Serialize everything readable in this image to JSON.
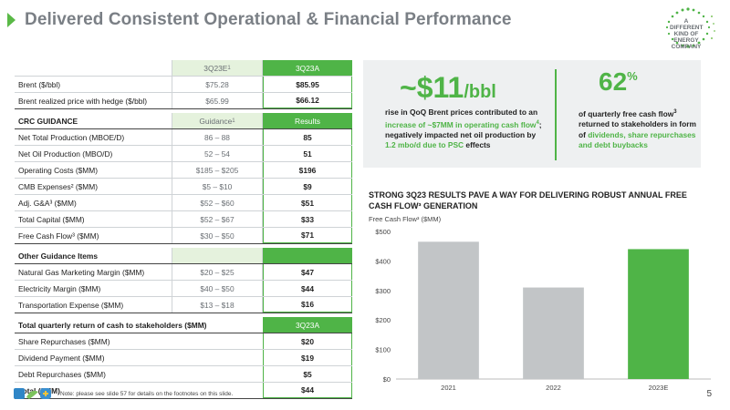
{
  "header": {
    "title": "Delivered Consistent Operational & Financial Performance",
    "logo_text": [
      "A DIFFERENT",
      "KIND OF ENERGY",
      "COMPANY"
    ]
  },
  "table": {
    "price_header": {
      "col1": "3Q23E",
      "col1_sup": "1",
      "col2": "3Q23A"
    },
    "price_rows": [
      {
        "label": "Brent ($/bbl)",
        "col1": "$75.28",
        "col2": "$85.95"
      },
      {
        "label": "Brent realized price with hedge ($/bbl)",
        "col1": "$65.99",
        "col2": "$66.12"
      }
    ],
    "guidance_header": {
      "label": "CRC GUIDANCE",
      "col1": "Guidance",
      "col1_sup": "1",
      "col2": "Results"
    },
    "guidance_rows": [
      {
        "label": "Net Total Production (MBOE/D)",
        "col1": "86 – 88",
        "col2": "85"
      },
      {
        "label": "Net Oil Production (MBO/D)",
        "col1": "52 – 54",
        "col2": "51"
      },
      {
        "label": "Operating Costs ($MM)",
        "col1": "$185 – $205",
        "col2": "$196"
      },
      {
        "label": "CMB Expenses² ($MM)",
        "col1": "$5 – $10",
        "col2": "$9"
      },
      {
        "label": "Adj. G&A³ ($MM)",
        "col1": "$52 – $60",
        "col2": "$51"
      },
      {
        "label": "Total Capital ($MM)",
        "col1": "$52 – $67",
        "col2": "$33"
      },
      {
        "label": "Free Cash Flow³ ($MM)",
        "col1": "$30 – $50",
        "col2": "$71"
      }
    ],
    "other_header": {
      "label": "Other Guidance Items"
    },
    "other_rows": [
      {
        "label": "Natural Gas Marketing Margin ($MM)",
        "col1": "$20 – $25",
        "col2": "$47"
      },
      {
        "label": "Electricity Margin ($MM)",
        "col1": "$40 – $50",
        "col2": "$44"
      },
      {
        "label": "Transportation Expense ($MM)",
        "col1": "$13 – $18",
        "col2": "$16"
      }
    ],
    "return_header": {
      "label": "Total quarterly return of cash to stakeholders ($MM)",
      "col2": "3Q23A"
    },
    "return_rows": [
      {
        "label": "Share Repurchases ($MM)",
        "col2": "$20"
      },
      {
        "label": "Dividend Payment ($MM)",
        "col2": "$19"
      },
      {
        "label": "Debt Repurchases ($MM)",
        "col2": "$5"
      },
      {
        "label": "Total ($MM)",
        "col2": "$44"
      }
    ]
  },
  "highlights": {
    "stat1_value": "~$11",
    "stat1_unit": "/bbl",
    "stat1_desc_a": "rise in QoQ Brent prices contributed to an ",
    "stat1_desc_b": "increase of ~$7MM in operating cash flow",
    "stat1_desc_b_sup": "4",
    "stat1_desc_c": "; negatively impacted net oil production by ",
    "stat1_desc_d": "1.2 mbo/d due to PSC",
    "stat1_desc_e": " effects",
    "stat2_value": "62",
    "stat2_unit": "%",
    "stat2_desc_a": "of quarterly free cash flow",
    "stat2_desc_a_sup": "3",
    "stat2_desc_b": " returned to stakeholders in form of ",
    "stat2_desc_c": "dividends, share repurchases and debt buybacks"
  },
  "chart_header": {
    "title": "STRONG 3Q23 RESULTS PAVE A WAY FOR DELIVERING ROBUST ANNUAL FREE CASH FLOW³ GENERATION",
    "subtitle": "Free Cash Flow³ ($MM)"
  },
  "chart_data": {
    "type": "bar",
    "title": "",
    "categories": [
      "2021",
      "2022",
      "2023E"
    ],
    "values": [
      465,
      310,
      440
    ],
    "ylim": [
      0,
      500
    ],
    "yticks": [
      "$0",
      "$100",
      "$200",
      "$300",
      "$400",
      "$500"
    ],
    "grid": false,
    "colors": [
      "#c2c5c7",
      "#c2c5c7",
      "#4fb447"
    ]
  },
  "footer": {
    "note": "Note: please see slide 57 for details on the footnotes on this slide.",
    "page": "5"
  },
  "colors": {
    "accent": "#4fb447",
    "title_gray": "#7a7f85",
    "panel": "#eef0f1"
  }
}
